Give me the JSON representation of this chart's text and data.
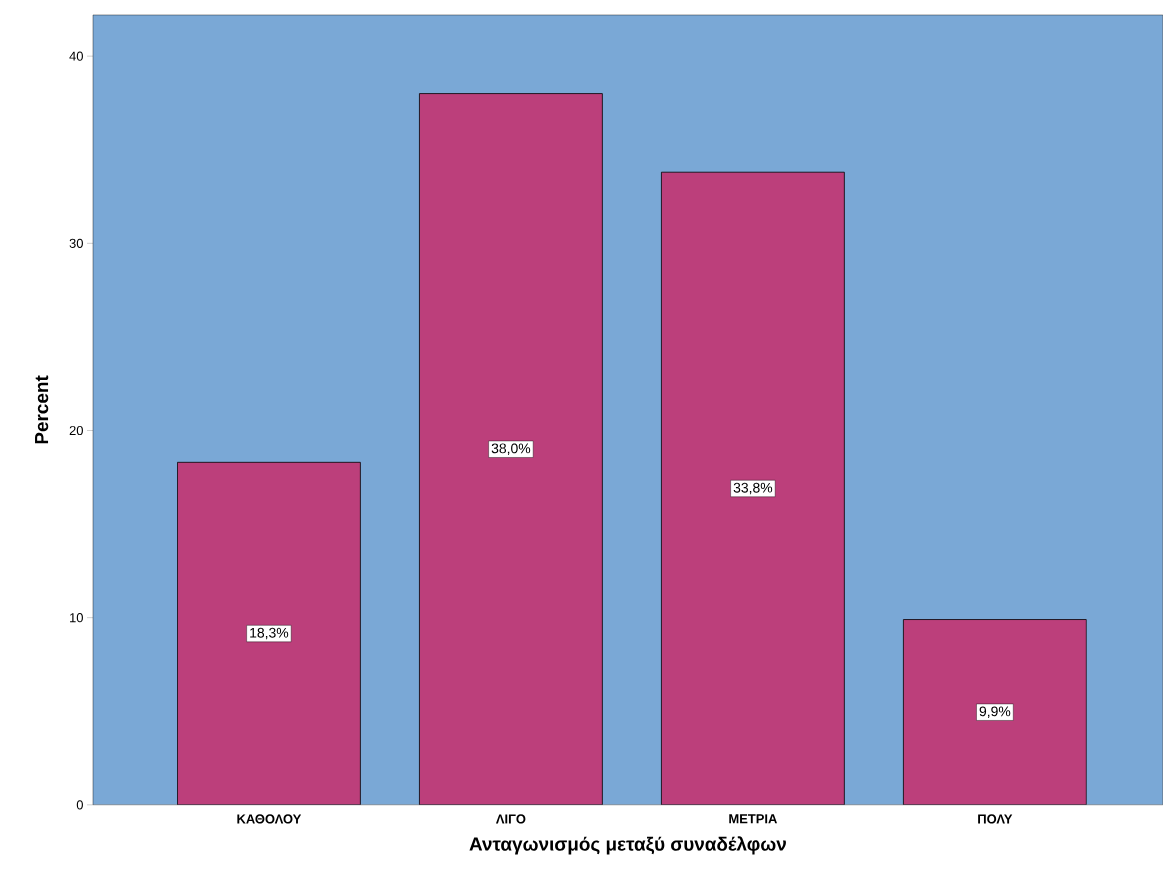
{
  "chart_data": {
    "type": "bar",
    "xlabel": "Ανταγωνισμός μεταξύ συναδέλφων",
    "ylabel": "Percent",
    "categories": [
      "ΚΑΘΟΛΟΥ",
      "ΛΙΓΟ",
      "ΜΕΤΡΙΑ",
      "ΠΟΛΥ"
    ],
    "values": [
      18.3,
      38.0,
      33.8,
      9.9
    ],
    "value_labels": [
      "18,3%",
      "38,0%",
      "33,8%",
      "9,9%"
    ],
    "color": "#bc3f7b",
    "ylim": [
      0,
      42.2
    ],
    "yticks": [
      0,
      10,
      20,
      30,
      40
    ]
  }
}
